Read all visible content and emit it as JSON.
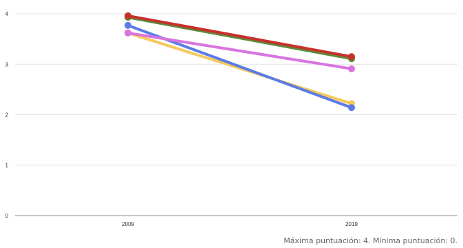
{
  "chart_data": {
    "type": "line",
    "title": "",
    "xlabel": "",
    "ylabel": "",
    "categories": [
      "2009",
      "2019"
    ],
    "ylim": [
      0,
      4
    ],
    "yticks": [
      "0",
      "1",
      "2",
      "3",
      "4"
    ],
    "grid": true,
    "legend": "none",
    "series": [
      {
        "color": "#f5c95b",
        "values": [
          3.62,
          2.22
        ]
      },
      {
        "color": "#5b7be6",
        "values": [
          3.77,
          2.14
        ]
      },
      {
        "color": "#d874e0",
        "values": [
          3.62,
          2.91
        ]
      },
      {
        "color": "#5a8a3a",
        "values": [
          3.93,
          3.11
        ]
      },
      {
        "color": "#c8302c",
        "values": [
          3.96,
          3.15
        ]
      }
    ]
  },
  "footnote": "Máxima puntuación: 4. Mínima puntuación: 0."
}
